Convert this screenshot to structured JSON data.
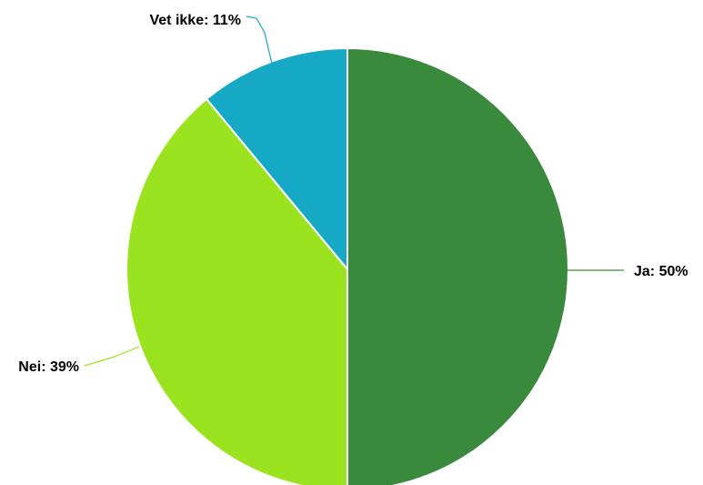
{
  "chart_data": {
    "type": "pie",
    "title": "",
    "slices": [
      {
        "label": "Ja",
        "value": 50,
        "display": "Ja: 50%",
        "color": "#3a8a3e"
      },
      {
        "label": "Nei",
        "value": 39,
        "display": "Nei: 39%",
        "color": "#9be31f"
      },
      {
        "label": "Vet ikke",
        "value": 11,
        "display": "Vet ikke: 11%",
        "color": "#16a9c5"
      }
    ],
    "start_angle_deg": 0,
    "direction": "clockwise",
    "slice_border_color": "#ffffff",
    "legend": "none"
  }
}
